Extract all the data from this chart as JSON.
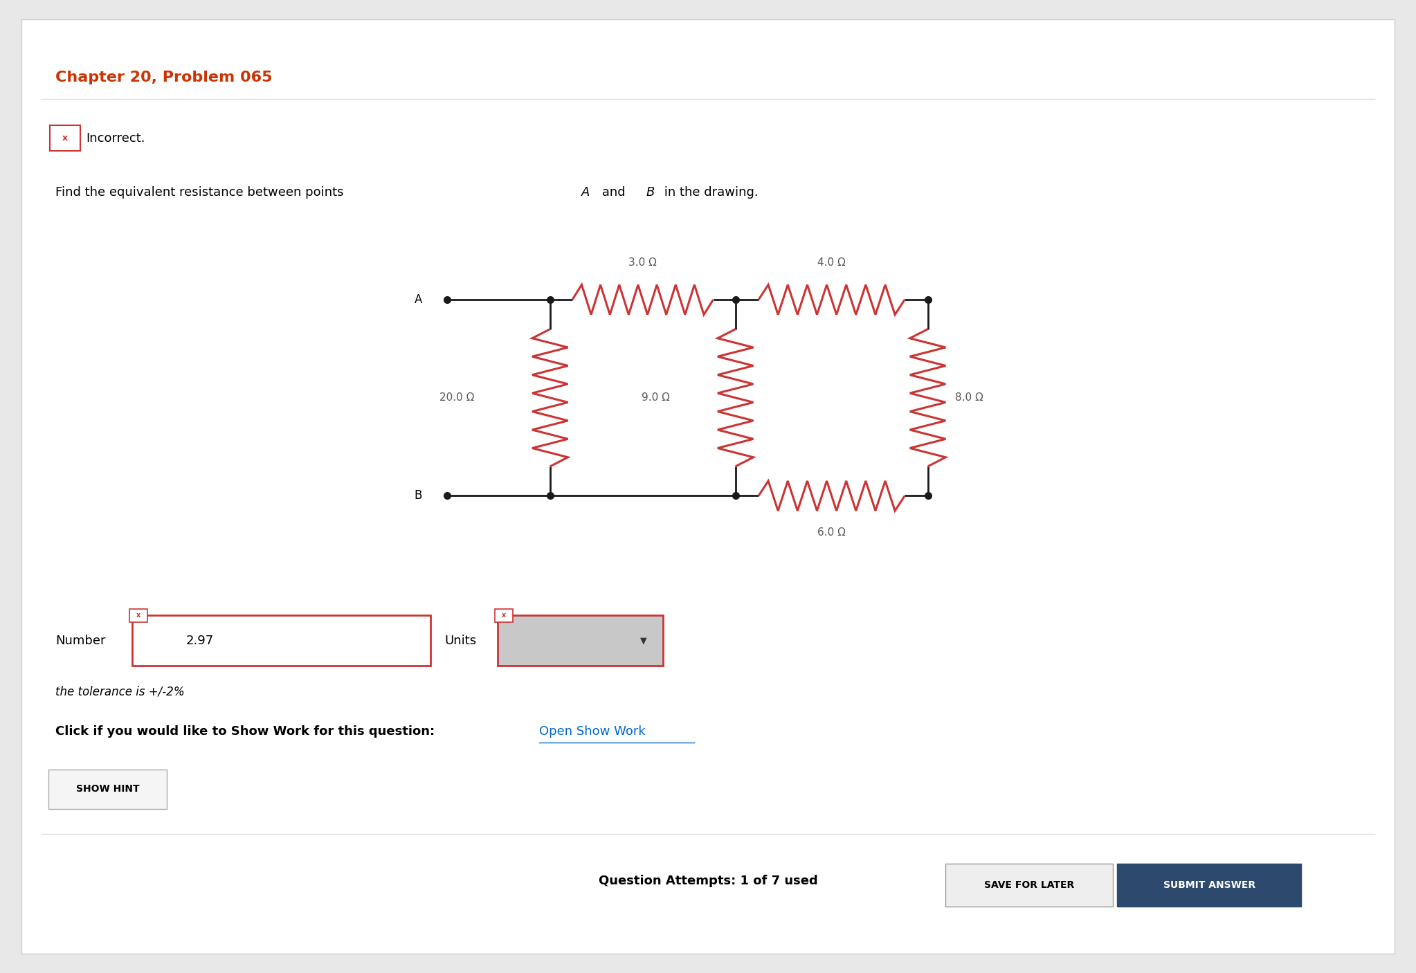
{
  "title": "Chapter 20, Problem 065",
  "title_color": "#cc3300",
  "bg_color": "#ffffff",
  "page_bg": "#e8e8e8",
  "incorrect_text": "Incorrect.",
  "problem_text": "Find the equivalent resistance between points ",
  "point_A": "A",
  "point_B": "B",
  "resistors": {
    "R3": "3.0 Ω",
    "R4": "4.0 Ω",
    "R20": "20.0 Ω",
    "R9": "9.0 Ω",
    "R8": "8.0 Ω",
    "R6": "6.0 Ω"
  },
  "answer": "2.97",
  "units_label": "Units",
  "tolerance_text": "the tolerance is +/-2%",
  "show_work_text": "Click if you would like to Show Work for this question:",
  "open_show_work": "Open Show Work",
  "show_hint": "SHOW HINT",
  "question_attempts": "Question Attempts: 1 of 7 used",
  "save_for_later": "SAVE FOR LATER",
  "submit_answer": "SUBMIT ANSWER",
  "resistor_color": "#cc3333",
  "wire_color": "#1a1a1a",
  "number_box_border": "#cc3333",
  "units_box_border": "#cc3333",
  "submit_btn_color": "#2d4a6e",
  "save_btn_color": "#f0f0f0",
  "incorrect_box_color": "#cc3333",
  "separator_color": "#dddddd",
  "hint_border_color": "#aaaaaa",
  "link_color": "#0066cc"
}
